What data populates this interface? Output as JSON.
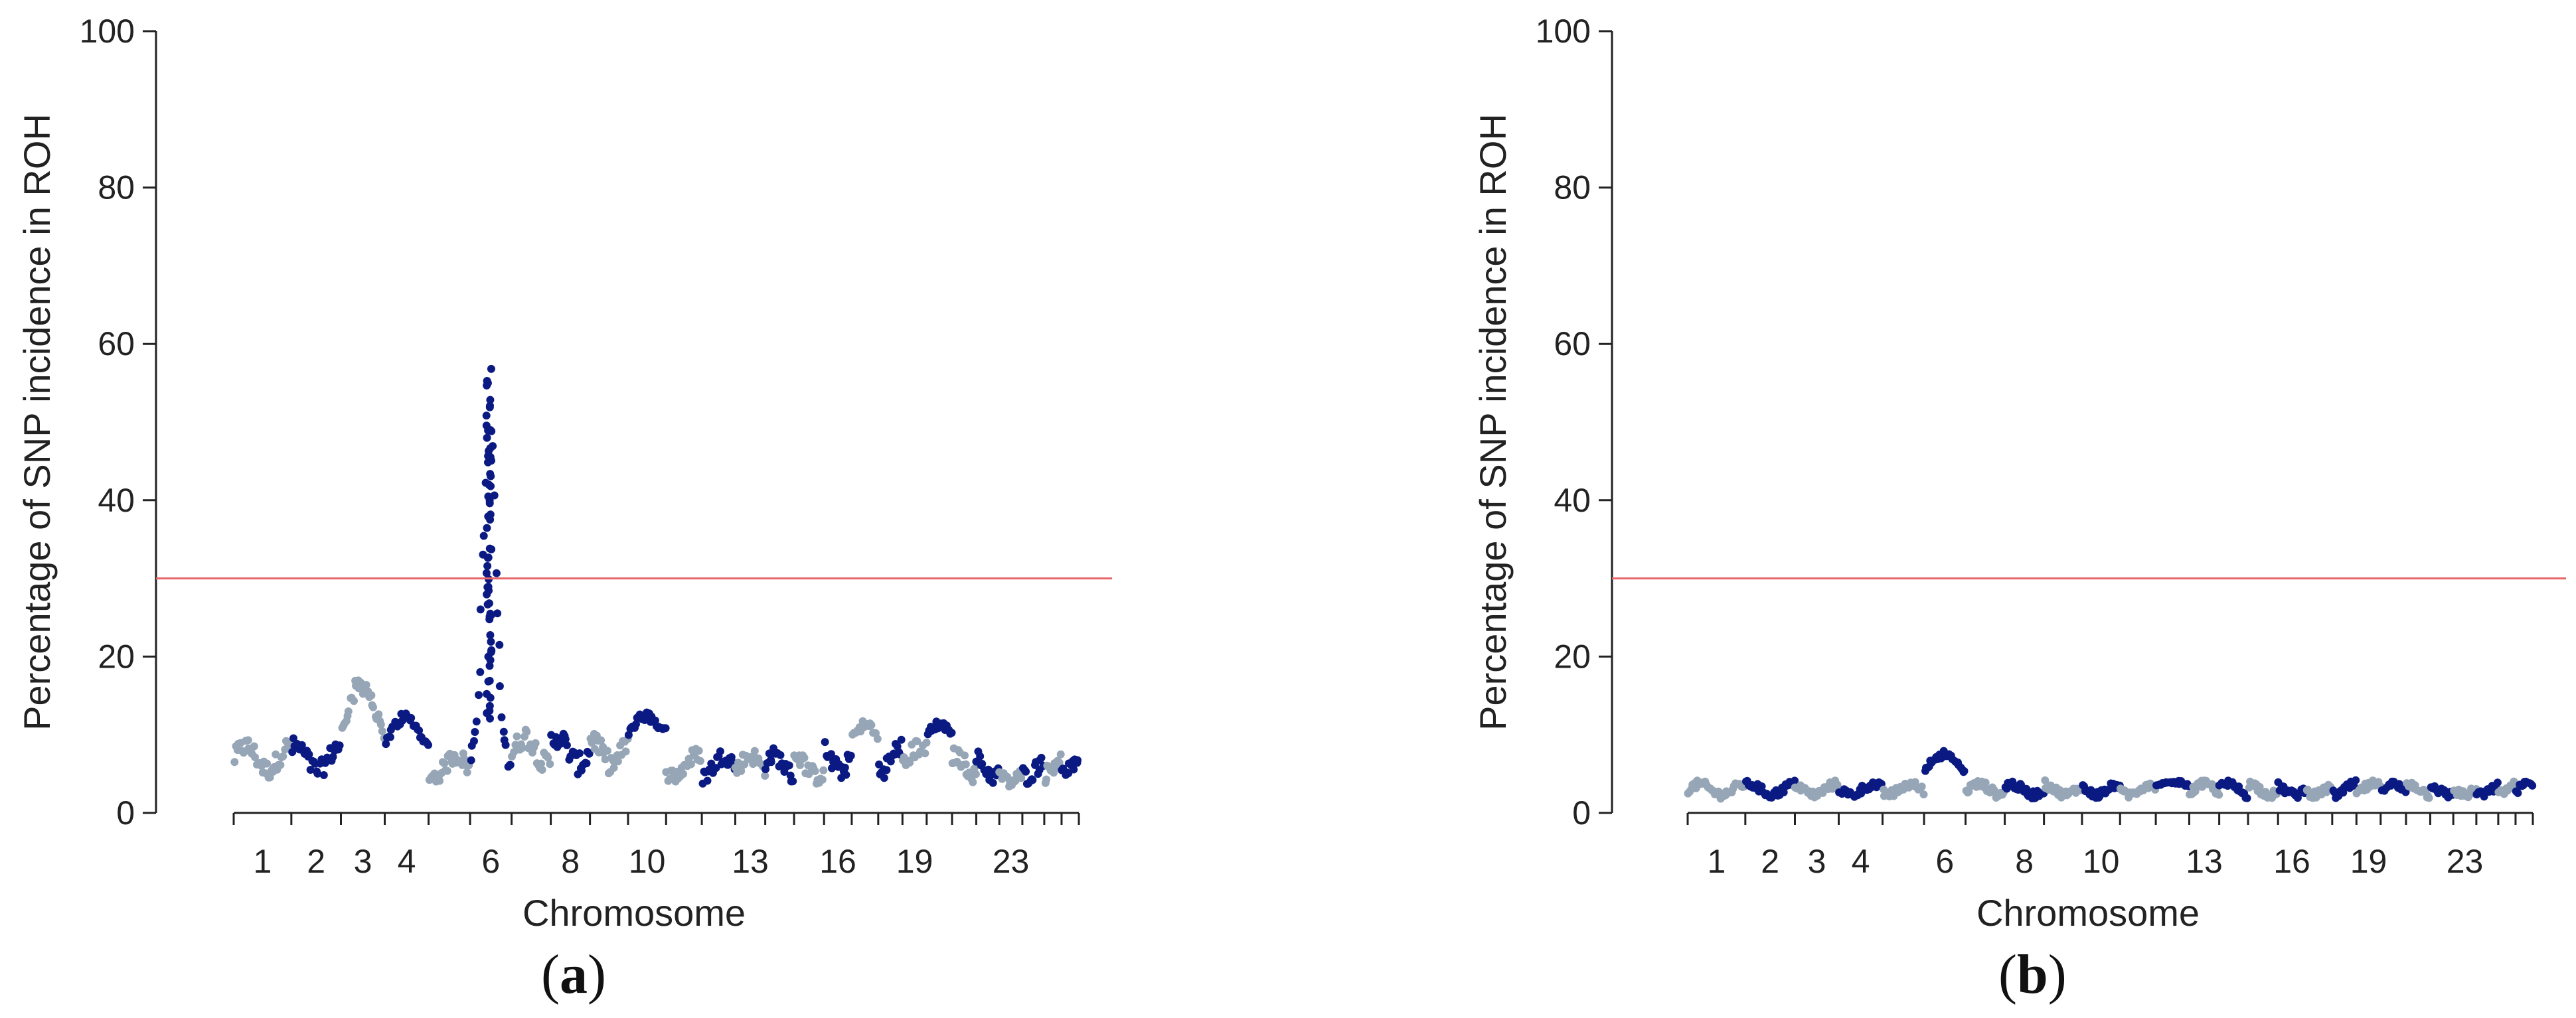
{
  "colors": {
    "chrom_light": "#96a6b7",
    "chrom_dark": "#0a1a82",
    "threshold": "#e8656a",
    "axis": "#222222"
  },
  "panels": [
    {
      "label_open": "(",
      "label_letter": "a",
      "label_close": ")"
    },
    {
      "label_open": "(",
      "label_letter": "b",
      "label_close": ")"
    }
  ],
  "chart_data": [
    {
      "type": "scatter",
      "panel": "a",
      "xlabel": "Chromosome",
      "ylabel": "Percentage of SNP incidence in ROH",
      "ylim": [
        0,
        100
      ],
      "yticks": [
        0,
        20,
        40,
        60,
        80,
        100
      ],
      "x_tick_labels": [
        "1",
        "2",
        "3",
        "4",
        "6",
        "8",
        "10",
        "13",
        "16",
        "19",
        "23"
      ],
      "threshold": 30,
      "chromosomes": [
        1,
        2,
        3,
        4,
        5,
        6,
        7,
        8,
        9,
        10,
        11,
        12,
        13,
        14,
        15,
        16,
        17,
        18,
        19,
        20,
        21,
        22,
        23,
        24,
        25,
        26
      ],
      "baseline_pct": [
        7,
        7,
        7,
        7,
        6,
        8,
        8,
        8,
        8,
        8,
        6,
        6,
        6,
        6,
        6,
        7,
        6,
        7,
        7,
        7,
        6,
        6,
        5,
        6,
        6,
        5
      ],
      "peaks": [
        {
          "chromosome": 3,
          "max": 18
        },
        {
          "chromosome": 4,
          "max": 13
        },
        {
          "chromosome": 6,
          "max": 57
        },
        {
          "chromosome": 10,
          "max": 13
        },
        {
          "chromosome": 17,
          "max": 12
        },
        {
          "chromosome": 20,
          "max": 12
        }
      ],
      "grid": false
    },
    {
      "type": "scatter",
      "panel": "b",
      "xlabel": "Chromosome",
      "ylabel": "Percentage of SNP incidence in ROH",
      "ylim": [
        0,
        100
      ],
      "yticks": [
        0,
        20,
        40,
        60,
        80,
        100
      ],
      "x_tick_labels": [
        "1",
        "2",
        "3",
        "4",
        "6",
        "8",
        "10",
        "13",
        "16",
        "19",
        "23"
      ],
      "threshold": 30,
      "chromosomes": [
        1,
        2,
        3,
        4,
        5,
        6,
        7,
        8,
        9,
        10,
        11,
        12,
        13,
        14,
        15,
        16,
        17,
        18,
        19,
        20,
        21,
        22,
        23,
        24,
        25,
        26
      ],
      "baseline_pct": [
        3,
        3,
        3,
        3,
        3,
        4,
        3,
        3,
        3,
        3,
        3,
        3,
        3,
        3,
        3,
        3,
        3,
        3,
        3,
        3,
        3,
        3,
        3,
        3,
        3,
        3
      ],
      "peaks": [
        {
          "chromosome": 6,
          "max": 8
        },
        {
          "chromosome": 12,
          "max": 4
        }
      ],
      "grid": false
    }
  ]
}
